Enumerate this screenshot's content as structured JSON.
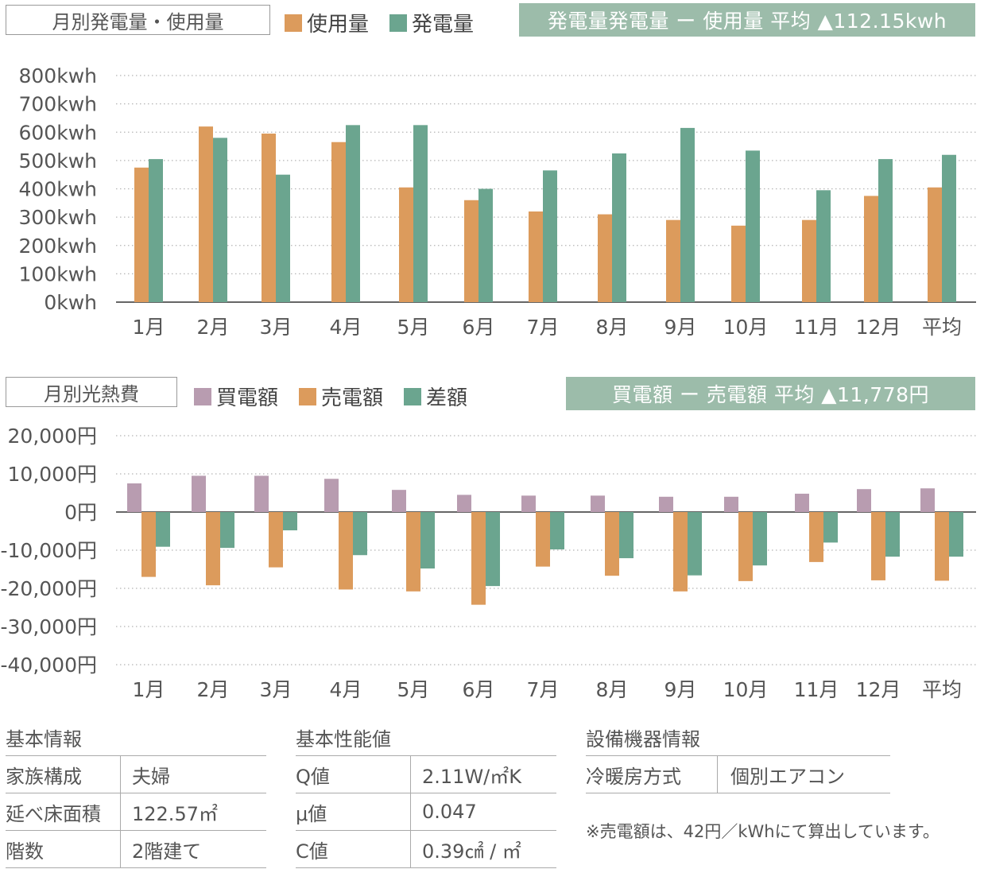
{
  "energy_section": {
    "label": "月別発電量・使用量",
    "legend": [
      {
        "label": "使用量",
        "color": "#dc9b5c"
      },
      {
        "label": "発電量",
        "color": "#6ba58f"
      }
    ],
    "avg_box": {
      "text": "発電量発電量 ー 使用量 平均 ▲112.15kwh",
      "color": "#9cbcaa"
    }
  },
  "cost_section": {
    "label": "月別光熱費",
    "legend": [
      {
        "label": "買電額",
        "color": "#b89cb0"
      },
      {
        "label": "売電額",
        "color": "#dc9b5c"
      },
      {
        "label": "差額",
        "color": "#6ba58f"
      }
    ],
    "avg_box": {
      "text": "買電額 ー 売電額 平均 ▲11,778円",
      "color": "#9cbcaa"
    }
  },
  "chart_data": [
    {
      "type": "bar",
      "categories": [
        "1月",
        "2月",
        "3月",
        "4月",
        "5月",
        "6月",
        "7月",
        "8月",
        "9月",
        "10月",
        "11月",
        "12月",
        "平均"
      ],
      "series": [
        {
          "name": "使用量",
          "color": "#dc9b5c",
          "values": [
            475,
            620,
            595,
            565,
            405,
            360,
            320,
            310,
            290,
            270,
            290,
            375,
            405
          ]
        },
        {
          "name": "発電量",
          "color": "#6ba58f",
          "values": [
            505,
            580,
            450,
            625,
            625,
            400,
            465,
            525,
            615,
            535,
            395,
            505,
            520
          ]
        }
      ],
      "ylim": [
        0,
        800
      ],
      "yticks": [
        0,
        100,
        200,
        300,
        400,
        500,
        600,
        700,
        800
      ],
      "ytick_labels": [
        "0kwh",
        "100kwh",
        "200kwh",
        "300kwh",
        "400kwh",
        "500kwh",
        "600kwh",
        "700kwh",
        "800kwh"
      ],
      "grid": true
    },
    {
      "type": "bar",
      "categories": [
        "1月",
        "2月",
        "3月",
        "4月",
        "5月",
        "6月",
        "7月",
        "8月",
        "9月",
        "10月",
        "11月",
        "12月",
        "平均"
      ],
      "series": [
        {
          "name": "買電額",
          "color": "#b89cb0",
          "values": [
            7500,
            9500,
            9500,
            8700,
            5800,
            4500,
            4300,
            4300,
            4000,
            4000,
            4800,
            6000,
            6200
          ]
        },
        {
          "name": "売電額",
          "color": "#dc9b5c",
          "values": [
            -17000,
            -19200,
            -14500,
            -20300,
            -20800,
            -24300,
            -14300,
            -16700,
            -20800,
            -18100,
            -13100,
            -17900,
            -18000
          ]
        },
        {
          "name": "差額",
          "color": "#6ba58f",
          "values": [
            -9100,
            -9400,
            -4800,
            -11300,
            -14800,
            -19400,
            -9800,
            -12100,
            -16600,
            -14000,
            -8000,
            -11700,
            -11700
          ]
        }
      ],
      "ylim": [
        -40000,
        20000
      ],
      "yticks": [
        -40000,
        -30000,
        -20000,
        -10000,
        0,
        10000,
        20000
      ],
      "ytick_labels": [
        "-40,000円",
        "-30,000円",
        "-20,000円",
        "-10,000円",
        "0円",
        "10,000円",
        "20,000円"
      ],
      "grid": true
    }
  ],
  "basic_info": {
    "title": "基本情報",
    "rows": [
      {
        "key": "家族構成",
        "value": "夫婦"
      },
      {
        "key": "延べ床面積",
        "value": "122.57㎡"
      },
      {
        "key": "階数",
        "value": "2階建て"
      }
    ]
  },
  "performance": {
    "title": "基本性能値",
    "rows": [
      {
        "key": "Q値",
        "value": "2.11W/㎡K"
      },
      {
        "key": "μ値",
        "value": "0.047"
      },
      {
        "key": "C値",
        "value": "0.39㎠ / ㎡"
      }
    ]
  },
  "equipment": {
    "title": "設備機器情報",
    "rows": [
      {
        "key": "冷暖房方式",
        "value": "個別エアコン"
      }
    ],
    "note": "※売電額は、42円／kWhにて算出しています。"
  }
}
